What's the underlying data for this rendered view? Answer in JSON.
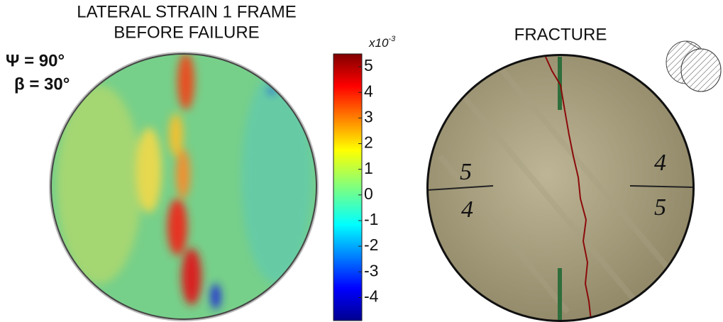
{
  "left_panel": {
    "title_lines": [
      "LATERAL STRAIN 1 FRAME",
      "BEFORE FAILURE"
    ],
    "psi_label": "Ψ = 90°",
    "beta_label": "β = 30°"
  },
  "colorbar": {
    "multiplier": "x10",
    "exponent": "-3",
    "lim": [
      -4.9,
      5.5
    ],
    "ticks": [
      5,
      4,
      3,
      2,
      1,
      0,
      -1,
      -2,
      -3,
      -4
    ]
  },
  "right_panel": {
    "title": "FRACTURE",
    "handwriting": [
      "5",
      "4",
      "4",
      "5"
    ]
  }
}
